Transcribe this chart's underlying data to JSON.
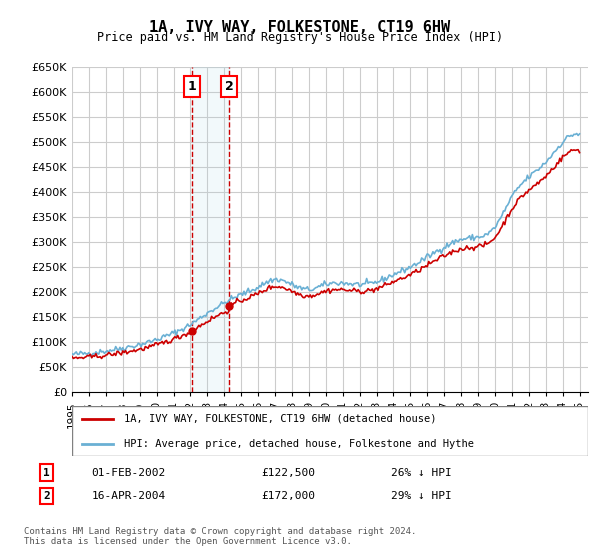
{
  "title": "1A, IVY WAY, FOLKESTONE, CT19 6HW",
  "subtitle": "Price paid vs. HM Land Registry's House Price Index (HPI)",
  "ylabel_ticks": [
    "£0",
    "£50K",
    "£100K",
    "£150K",
    "£200K",
    "£250K",
    "£300K",
    "£350K",
    "£400K",
    "£450K",
    "£500K",
    "£550K",
    "£600K",
    "£650K"
  ],
  "ylim": [
    0,
    650000
  ],
  "xlim_start": 1995.0,
  "xlim_end": 2025.5,
  "hpi_color": "#6ab0d4",
  "price_color": "#cc0000",
  "sale1_date": 2002.08,
  "sale1_price": 122500,
  "sale2_date": 2004.29,
  "sale2_price": 172000,
  "sale1_label": "1",
  "sale2_label": "2",
  "legend_line1": "1A, IVY WAY, FOLKESTONE, CT19 6HW (detached house)",
  "legend_line2": "HPI: Average price, detached house, Folkestone and Hythe",
  "table_row1": "1     01-FEB-2002          £122,500          26% ↓ HPI",
  "table_row2": "2     16-APR-2004          £172,000          29% ↓ HPI",
  "footnote": "Contains HM Land Registry data © Crown copyright and database right 2024.\nThis data is licensed under the Open Government Licence v3.0.",
  "background_color": "#ffffff",
  "plot_bg_color": "#ffffff",
  "grid_color": "#cccccc"
}
